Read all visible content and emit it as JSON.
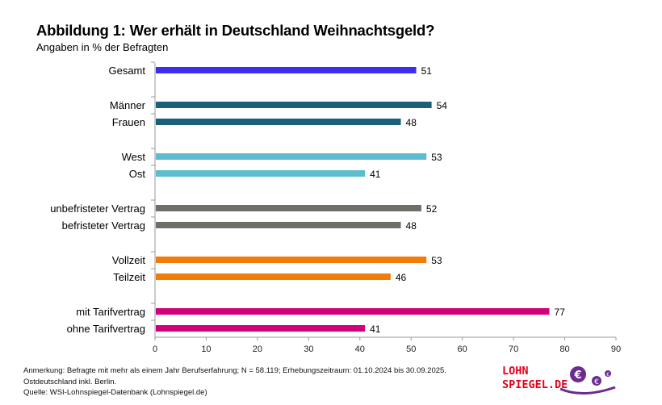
{
  "chart_data": {
    "type": "bar",
    "orientation": "horizontal",
    "title": "Abbildung 1: Wer erhält in Deutschland Weihnachtsgeld?",
    "subtitle": "Angaben in % der Befragten",
    "xlim": [
      0,
      90
    ],
    "xticks": [
      0,
      10,
      20,
      30,
      40,
      50,
      60,
      70,
      80,
      90
    ],
    "categories": [
      "Gesamt",
      "Männer",
      "Frauen",
      "West",
      "Ost",
      "unbefristeter Vertrag",
      "befristeter Vertrag",
      "Vollzeit",
      "Teilzeit",
      "mit Tarifvertrag",
      "ohne Tarifvertrag"
    ],
    "values": [
      51,
      54,
      48,
      53,
      41,
      52,
      48,
      53,
      46,
      77,
      41
    ],
    "groups": [
      0,
      1,
      1,
      2,
      2,
      3,
      3,
      4,
      4,
      5,
      5
    ],
    "colors": [
      "#3d2cf2",
      "#1b5f7b",
      "#1b5f7b",
      "#5dbccf",
      "#5dbccf",
      "#6f6f67",
      "#6f6f67",
      "#f07d0a",
      "#f07d0a",
      "#d1007b",
      "#d1007b"
    ],
    "grid": false
  },
  "footnote": {
    "line1": "Anmerkung: Befragte mit mehr als einem Jahr Berufserfahrung;  N = 58.119;  Erhebungszeitraum:  01.10.2024  bis 30.09.2025.",
    "line2": "Ostdeutschland  inkl. Berlin.",
    "line3": "Quelle: WSI-Lohnspiegel-Datenbank   (Lohnspiegel.de)"
  },
  "logo": {
    "line1": "LOHN",
    "line2": "SPIEGEL.DE"
  }
}
